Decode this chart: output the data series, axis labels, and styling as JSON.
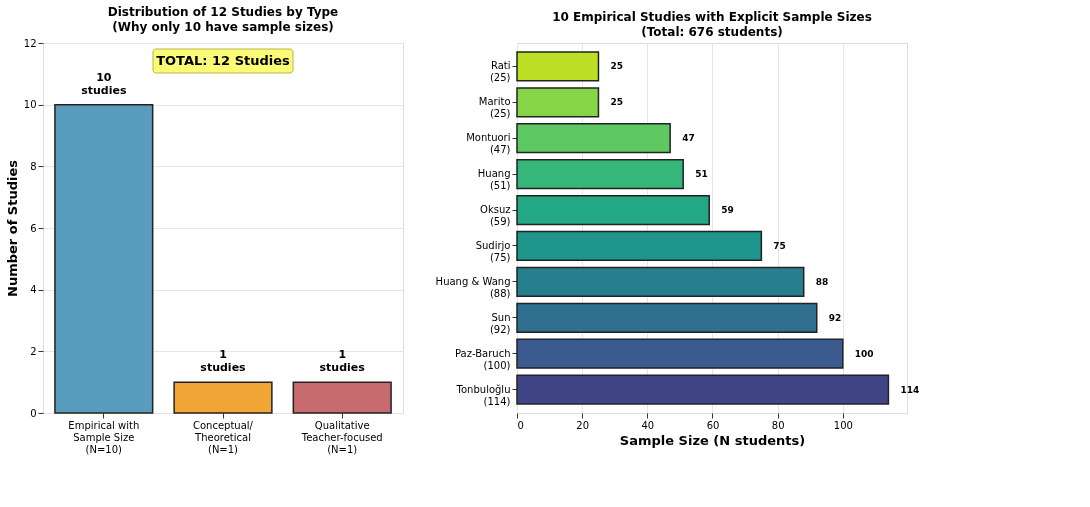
{
  "chart_data": [
    {
      "type": "bar",
      "title": "Distribution of 12 Studies by Type",
      "subtitle": "(Why only 10 have sample sizes)",
      "ylabel": "Number of Studies",
      "categories": [
        "Empirical with\nSample Size\n(N=10)",
        "Conceptual/\nTheoretical\n(N=1)",
        "Qualitative\nTeacher-focused\n(N=1)"
      ],
      "values": [
        10,
        1,
        1
      ],
      "colors": [
        "#5a9cbd",
        "#f0a535",
        "#c86b6e"
      ],
      "value_labels": [
        "10\nstudies",
        "1\nstudies",
        "1\nstudies"
      ],
      "ylim": [
        0,
        12
      ],
      "yticks": [
        0,
        2,
        4,
        6,
        8,
        10,
        12
      ],
      "grid": "y",
      "annotations": [
        "TOTAL: 12 Studies"
      ]
    },
    {
      "type": "bar",
      "orientation": "horizontal",
      "title": "10 Empirical Studies with Explicit Sample Sizes",
      "subtitle": "(Total: 676 students)",
      "xlabel": "Sample Size (N students)",
      "categories": [
        "Rati\n(25)",
        "Marito\n(25)",
        "Montuori\n(47)",
        "Huang\n(51)",
        "Oksuz\n(59)",
        "Sudirjo\n(75)",
        "Huang & Wang\n(88)",
        "Sun\n(92)",
        "Paz-Baruch\n(100)",
        "Tonbuloğlu\n(114)"
      ],
      "values": [
        25,
        25,
        47,
        51,
        59,
        75,
        88,
        92,
        100,
        114
      ],
      "colors": [
        "#bddf26",
        "#86d549",
        "#5ec962",
        "#35b779",
        "#22a884",
        "#1f968b",
        "#277f8e",
        "#2e6e8e",
        "#3b5a8f",
        "#414487"
      ],
      "data_labels": true,
      "xlim": [
        0,
        119.7
      ],
      "xticks": [
        0,
        20,
        40,
        60,
        80,
        100
      ],
      "grid": "x"
    }
  ]
}
